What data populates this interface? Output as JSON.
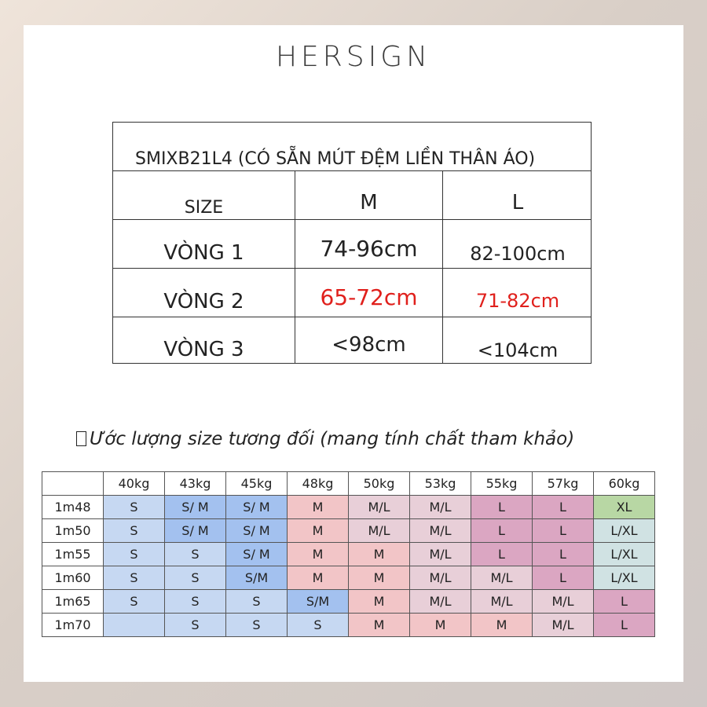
{
  "brand": "HERSIGN",
  "measurement_table": {
    "title": "SMIXB21L4 (CÓ SẴN MÚT ĐỆM LIỀN THÂN ÁO)",
    "header": [
      "SIZE",
      "M",
      "L"
    ],
    "rows": [
      {
        "label": "VÒNG 1",
        "m": "74-96cm",
        "l": "82-100cm"
      },
      {
        "label": "VÒNG 2",
        "m": "65-72cm",
        "l": "71-82cm"
      },
      {
        "label": "VÒNG 3",
        "m": "<98cm",
        "l": "<104cm"
      }
    ]
  },
  "estimate_title": "Ước lượng size tương đối (mang tính chất tham khảo)",
  "size_grid": {
    "weights": [
      "40kg",
      "43kg",
      "45kg",
      "48kg",
      "50kg",
      "53kg",
      "55kg",
      "57kg",
      "60kg"
    ],
    "rows": [
      {
        "height": "1m48",
        "sizes": [
          "S",
          "S/ M",
          "S/ M",
          "M",
          "M/L",
          "M/L",
          "L",
          "L",
          "XL"
        ]
      },
      {
        "height": "1m50",
        "sizes": [
          "S",
          "S/ M",
          "S/ M",
          "M",
          "M/L",
          "M/L",
          "L",
          "L",
          "L/XL"
        ]
      },
      {
        "height": "1m55",
        "sizes": [
          "S",
          "S",
          "S/ M",
          "M",
          "M",
          "M/L",
          "L",
          "L",
          "L/XL"
        ]
      },
      {
        "height": "1m60",
        "sizes": [
          "S",
          "S",
          "S/M",
          "M",
          "M",
          "M/L",
          "M/L",
          "L",
          "L/XL"
        ]
      },
      {
        "height": "1m65",
        "sizes": [
          "S",
          "S",
          "S",
          "S/M",
          "M",
          "M/L",
          "M/L",
          "M/L",
          "L"
        ]
      },
      {
        "height": "1m70",
        "sizes": [
          "",
          "S",
          "S",
          "S",
          "M",
          "M",
          "M",
          "M/L",
          "L"
        ]
      }
    ],
    "colors": {
      "S": "#c6d8f2",
      "S/ M": "#a3c1ef",
      "S/M": "#a3c1ef",
      "M": "#f2c5c7",
      "M/L": "#e8cfd8",
      "L": "#dba6c2",
      "XL": "#b8d7a4",
      "L/XL": "#d0e2e3",
      "": "#c6d8f2"
    }
  }
}
